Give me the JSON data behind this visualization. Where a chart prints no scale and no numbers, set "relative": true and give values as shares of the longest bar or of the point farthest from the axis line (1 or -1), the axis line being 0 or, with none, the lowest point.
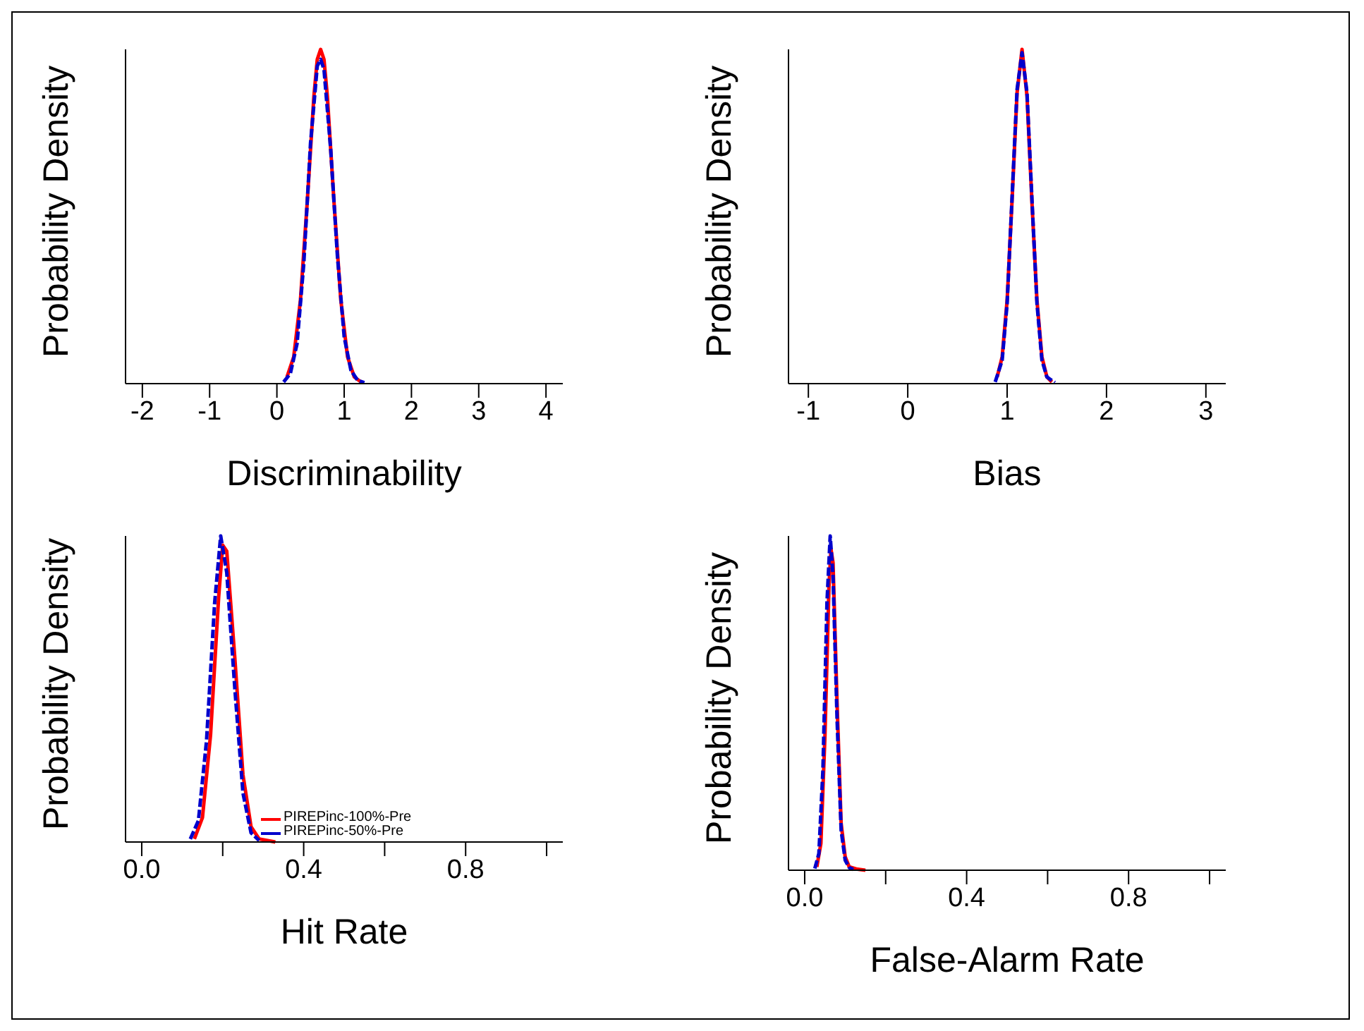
{
  "chart_data": [
    {
      "type": "line",
      "relative": true,
      "xlabel": "Discriminability",
      "ylabel": "Probability Density",
      "xlim": [
        -2.25,
        4.25
      ],
      "xticks": [
        -2,
        -1,
        0,
        1,
        2,
        3,
        4
      ],
      "legend": false,
      "series": [
        {
          "color": "#ff0000",
          "line_style": "solid",
          "x": [
            0.15,
            0.25,
            0.35,
            0.45,
            0.55,
            0.6,
            0.65,
            0.7,
            0.75,
            0.85,
            0.95,
            1.05,
            1.15,
            1.25
          ],
          "values": [
            0.02,
            0.08,
            0.25,
            0.54,
            0.86,
            0.97,
            1.0,
            0.97,
            0.86,
            0.54,
            0.25,
            0.08,
            0.02,
            0.005
          ]
        },
        {
          "color": "#0000cc",
          "line_style": "dashed",
          "x": [
            0.1,
            0.2,
            0.3,
            0.4,
            0.5,
            0.6,
            0.65,
            0.7,
            0.8,
            0.9,
            1.0,
            1.1,
            1.2,
            1.3
          ],
          "values": [
            0.005,
            0.03,
            0.12,
            0.36,
            0.72,
            0.95,
            0.97,
            0.94,
            0.7,
            0.38,
            0.14,
            0.04,
            0.01,
            0.003
          ]
        }
      ]
    },
    {
      "type": "line",
      "relative": true,
      "xlabel": "Bias",
      "ylabel": "Probability Density",
      "xlim": [
        -1.2,
        3.2
      ],
      "xticks": [
        -1,
        0,
        1,
        2,
        3
      ],
      "legend": false,
      "series": [
        {
          "color": "#ff0000",
          "line_style": "solid",
          "x": [
            0.9,
            0.95,
            1.0,
            1.05,
            1.1,
            1.15,
            1.2,
            1.25,
            1.3,
            1.35,
            1.4,
            1.45
          ],
          "values": [
            0.02,
            0.08,
            0.25,
            0.55,
            0.87,
            1.0,
            0.86,
            0.54,
            0.25,
            0.08,
            0.02,
            0.005
          ]
        },
        {
          "color": "#0000cc",
          "line_style": "dashed",
          "x": [
            0.88,
            0.95,
            1.0,
            1.05,
            1.1,
            1.15,
            1.2,
            1.25,
            1.3,
            1.35,
            1.4,
            1.48
          ],
          "values": [
            0.005,
            0.07,
            0.24,
            0.56,
            0.88,
            0.99,
            0.87,
            0.55,
            0.24,
            0.07,
            0.02,
            0.003
          ]
        }
      ]
    },
    {
      "type": "line",
      "relative": true,
      "xlabel": "Hit Rate",
      "ylabel": "Probability Density",
      "xlim": [
        -0.04,
        1.04
      ],
      "xticks": [
        {
          "value": 0,
          "label": "0.0"
        },
        {
          "value": 0.2,
          "label": null
        },
        0.4,
        {
          "value": 0.6,
          "label": null
        },
        0.8,
        {
          "value": 1.0,
          "label": null
        }
      ],
      "legend": "bottom left",
      "series": [
        {
          "name": "PIREPinc-100%-Pre",
          "color": "#ff0000",
          "line_style": "solid",
          "x": [
            0.13,
            0.15,
            0.17,
            0.19,
            0.2,
            0.21,
            0.23,
            0.25,
            0.27,
            0.29,
            0.33
          ],
          "values": [
            0.01,
            0.08,
            0.35,
            0.8,
            0.97,
            0.95,
            0.6,
            0.22,
            0.05,
            0.01,
            0.0
          ]
        },
        {
          "name": "PIREPinc-50%-Pre",
          "color": "#0000cc",
          "line_style": "dashed",
          "x": [
            0.12,
            0.14,
            0.16,
            0.18,
            0.195,
            0.21,
            0.23,
            0.25,
            0.27,
            0.29
          ],
          "values": [
            0.01,
            0.07,
            0.33,
            0.78,
            1.0,
            0.88,
            0.5,
            0.16,
            0.03,
            0.005
          ]
        }
      ]
    },
    {
      "type": "line",
      "relative": true,
      "xlabel": "False-Alarm Rate",
      "ylabel": "Probability Density",
      "xlim": [
        -0.04,
        1.04
      ],
      "xticks": [
        {
          "value": 0,
          "label": "0.0"
        },
        {
          "value": 0.2,
          "label": null
        },
        0.4,
        {
          "value": 0.6,
          "label": null
        },
        0.8,
        {
          "value": 1.0,
          "label": null
        }
      ],
      "legend": false,
      "series": [
        {
          "color": "#ff0000",
          "line_style": "solid",
          "x": [
            0.03,
            0.04,
            0.05,
            0.06,
            0.065,
            0.07,
            0.08,
            0.09,
            0.1,
            0.11,
            0.13,
            0.15
          ],
          "values": [
            0.01,
            0.08,
            0.4,
            0.85,
            0.96,
            0.92,
            0.5,
            0.14,
            0.04,
            0.01,
            0.003,
            0.0
          ]
        },
        {
          "color": "#0000cc",
          "line_style": "dashed",
          "x": [
            0.025,
            0.035,
            0.045,
            0.055,
            0.063,
            0.07,
            0.08,
            0.09,
            0.1,
            0.11,
            0.12
          ],
          "values": [
            0.005,
            0.05,
            0.3,
            0.8,
            1.0,
            0.88,
            0.45,
            0.12,
            0.03,
            0.008,
            0.002
          ]
        }
      ]
    }
  ]
}
